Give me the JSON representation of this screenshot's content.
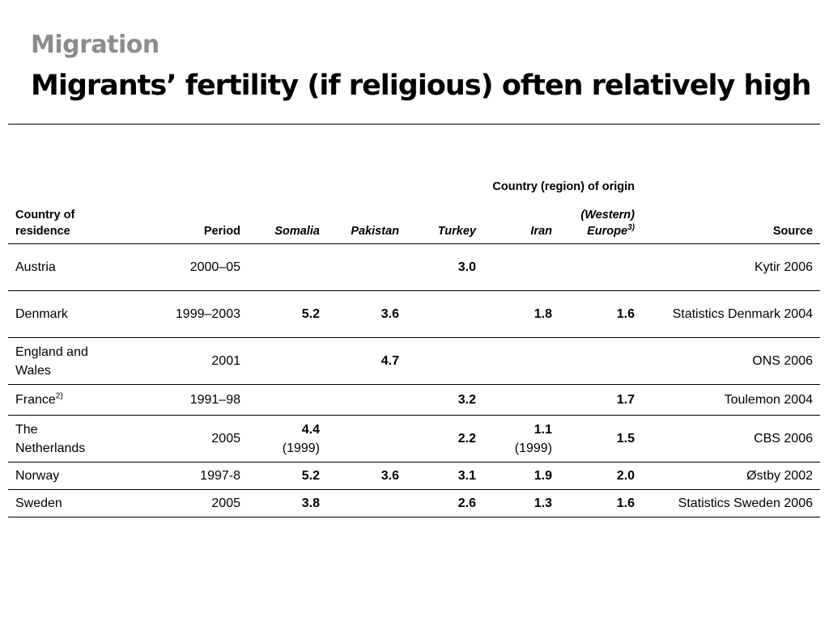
{
  "slide": {
    "kicker": "Migration",
    "title": "Migrants’ fertility (if religious) often relatively high"
  },
  "table": {
    "group_header": "Country (region) of origin",
    "headers": {
      "residence": "Country of residence",
      "period": "Period",
      "somalia": "Somalia",
      "pakistan": "Pakistan",
      "turkey": "Turkey",
      "iran": "Iran",
      "europe_line1": "(Western)",
      "europe_line2": "Europe",
      "europe_note": "3)",
      "source": "Source"
    },
    "rows": [
      {
        "country": "Austria",
        "country_line2": "",
        "note": "",
        "period": "2000–05",
        "somalia": "",
        "somalia_sub": "",
        "pakistan": "",
        "turkey": "3.0",
        "iran": "",
        "iran_sub": "",
        "europe": "",
        "source": "Kytir 2006"
      },
      {
        "country": "Denmark",
        "country_line2": "",
        "note": "",
        "period": "1999–2003",
        "somalia": "5.2",
        "somalia_sub": "",
        "pakistan": "3.6",
        "turkey": "",
        "iran": "1.8",
        "iran_sub": "",
        "europe": "1.6",
        "source": "Statistics Denmark 2004"
      },
      {
        "country": "England and",
        "country_line2": "Wales",
        "note": "",
        "period": "2001",
        "somalia": "",
        "somalia_sub": "",
        "pakistan": "4.7",
        "turkey": "",
        "iran": "",
        "iran_sub": "",
        "europe": "",
        "source": "ONS 2006"
      },
      {
        "country": "France",
        "country_line2": "",
        "note": "2)",
        "period": "1991–98",
        "somalia": "",
        "somalia_sub": "",
        "pakistan": "",
        "turkey": "3.2",
        "iran": "",
        "iran_sub": "",
        "europe": "1.7",
        "source": "Toulemon 2004"
      },
      {
        "country": "The",
        "country_line2": "Netherlands",
        "note": "",
        "period": "2005",
        "somalia": "4.4",
        "somalia_sub": "(1999)",
        "pakistan": "",
        "turkey": "2.2",
        "iran": "1.1",
        "iran_sub": "(1999)",
        "europe": "1.5",
        "source": "CBS 2006"
      },
      {
        "country": "Norway",
        "country_line2": "",
        "note": "",
        "period": "1997-8",
        "somalia": "5.2",
        "somalia_sub": "",
        "pakistan": "3.6",
        "turkey": "3.1",
        "iran": "1.9",
        "iran_sub": "",
        "europe": "2.0",
        "source": "Østby 2002"
      },
      {
        "country": "Sweden",
        "country_line2": "",
        "note": "",
        "period": "2005",
        "somalia": "3.8",
        "somalia_sub": "",
        "pakistan": "",
        "turkey": "2.6",
        "iran": "1.3",
        "iran_sub": "",
        "europe": "1.6",
        "source": "Statistics Sweden 2006"
      }
    ]
  }
}
